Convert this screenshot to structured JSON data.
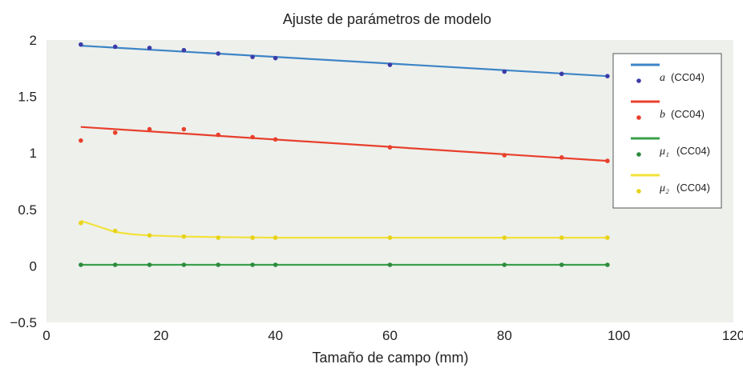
{
  "chart_data": {
    "type": "line",
    "title": "Ajuste de parámetros de modelo",
    "xlabel": "Tamaño de campo (mm)",
    "ylabel": "",
    "xlim": [
      0,
      120
    ],
    "ylim": [
      -0.5,
      2
    ],
    "xticks": [
      "0",
      "20",
      "40",
      "60",
      "80",
      "100",
      "120"
    ],
    "yticks": [
      "2",
      "1.5",
      "1",
      "0.5",
      "0",
      "−0.5"
    ],
    "grid": false,
    "legend_position": "right",
    "plot_background": "#eef0ec",
    "series": [
      {
        "name": "a",
        "name_suffix": "(CC04)",
        "color": "#3d85c6",
        "marker_color": "#3c3ca8",
        "fit": [
          [
            6,
            1.95
          ],
          [
            98,
            1.68
          ]
        ],
        "points": [
          [
            6,
            1.96
          ],
          [
            12,
            1.94
          ],
          [
            18,
            1.93
          ],
          [
            24,
            1.91
          ],
          [
            30,
            1.88
          ],
          [
            36,
            1.85
          ],
          [
            40,
            1.84
          ],
          [
            60,
            1.78
          ],
          [
            80,
            1.72
          ],
          [
            90,
            1.7
          ],
          [
            98,
            1.68
          ]
        ]
      },
      {
        "name": "b",
        "name_suffix": "(CC04)",
        "color": "#e8402c",
        "marker_color": "#e8402c",
        "fit": [
          [
            6,
            1.23
          ],
          [
            98,
            0.93
          ]
        ],
        "points": [
          [
            6,
            1.11
          ],
          [
            12,
            1.18
          ],
          [
            18,
            1.21
          ],
          [
            24,
            1.21
          ],
          [
            30,
            1.16
          ],
          [
            36,
            1.14
          ],
          [
            40,
            1.12
          ],
          [
            60,
            1.05
          ],
          [
            80,
            0.98
          ],
          [
            90,
            0.96
          ],
          [
            98,
            0.93
          ]
        ]
      },
      {
        "name": "μ₁",
        "name_suffix": "(CC04)",
        "color": "#3aa04a",
        "marker_color": "#2e8b3e",
        "fit": [
          [
            6,
            0.01
          ],
          [
            98,
            0.01
          ]
        ],
        "points": [
          [
            6,
            0.01
          ],
          [
            12,
            0.01
          ],
          [
            18,
            0.01
          ],
          [
            24,
            0.01
          ],
          [
            30,
            0.01
          ],
          [
            36,
            0.01
          ],
          [
            40,
            0.01
          ],
          [
            60,
            0.01
          ],
          [
            80,
            0.01
          ],
          [
            90,
            0.01
          ],
          [
            98,
            0.01
          ]
        ]
      },
      {
        "name": "μ₂",
        "name_suffix": "(CC04)",
        "color": "#f2e23a",
        "marker_color": "#e6d21a",
        "fit": [
          [
            6,
            0.4
          ],
          [
            9,
            0.35
          ],
          [
            12,
            0.3
          ],
          [
            15,
            0.28
          ],
          [
            18,
            0.27
          ],
          [
            24,
            0.26
          ],
          [
            30,
            0.255
          ],
          [
            36,
            0.252
          ],
          [
            40,
            0.25
          ],
          [
            60,
            0.25
          ],
          [
            80,
            0.25
          ],
          [
            90,
            0.25
          ],
          [
            98,
            0.25
          ]
        ],
        "points": [
          [
            6,
            0.38
          ],
          [
            12,
            0.31
          ],
          [
            18,
            0.27
          ],
          [
            24,
            0.26
          ],
          [
            30,
            0.25
          ],
          [
            36,
            0.25
          ],
          [
            40,
            0.25
          ],
          [
            60,
            0.25
          ],
          [
            80,
            0.25
          ],
          [
            90,
            0.25
          ],
          [
            98,
            0.25
          ]
        ]
      }
    ]
  }
}
